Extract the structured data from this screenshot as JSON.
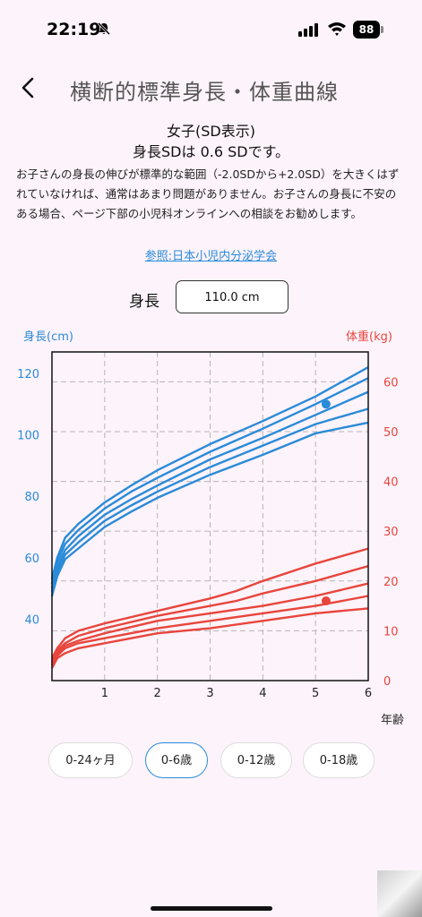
{
  "status": {
    "time": "22:19",
    "battery": "88"
  },
  "nav": {
    "title": "横断的標準身長・体重曲線"
  },
  "header": {
    "subtitle": "女子(SD表示)",
    "sd_text": "身長SDは 0.6 SDです。"
  },
  "description": "お子さんの身長の伸びが標準的な範囲（-2.0SDから+2.0SD）を大きくはずれていなければ、通常はあまり問題がありません。お子さんの身長に不安のある場合、ページ下部の小児科オンラインへの相談をお勧めします。",
  "reference_link": "参照:日本小児内分泌学会",
  "height_input": {
    "label": "身長",
    "value": "110.0 cm"
  },
  "age_tabs": [
    {
      "label": "0-24ヶ月",
      "active": false
    },
    {
      "label": "0-6歳",
      "active": true
    },
    {
      "label": "0-12歳",
      "active": false
    },
    {
      "label": "0-18歳",
      "active": false
    }
  ],
  "chart_data": {
    "type": "line",
    "y_left_title": "身長(cm)",
    "y_right_title": "体重(kg)",
    "x_axis_label": "年齢",
    "x_range": [
      0,
      6
    ],
    "x_ticks": [
      1,
      2,
      3,
      4,
      5,
      6
    ],
    "y_left_range": [
      20,
      127
    ],
    "y_left_ticks": [
      40,
      60,
      80,
      100,
      120
    ],
    "y_right_range": [
      0,
      66
    ],
    "y_right_ticks": [
      0,
      10,
      20,
      30,
      40,
      50,
      60
    ],
    "grid": true,
    "height_color": "#2a8bd8",
    "weight_color": "#e8453c",
    "height_series": [
      {
        "x": [
          0,
          0.1,
          0.25,
          0.5,
          1,
          1.5,
          2,
          3,
          4,
          5,
          6
        ],
        "values": [
          53.0,
          60.0,
          66.5,
          71.0,
          78.0,
          83.5,
          88.5,
          97.0,
          104.5,
          112.5,
          122.0
        ]
      },
      {
        "x": [
          0,
          0.1,
          0.25,
          0.5,
          1,
          1.5,
          2,
          3,
          4,
          5,
          6
        ],
        "values": [
          51.5,
          58.5,
          64.5,
          69.0,
          76.0,
          81.5,
          86.0,
          94.5,
          102.0,
          110.0,
          118.5
        ]
      },
      {
        "x": [
          0,
          0.1,
          0.25,
          0.5,
          1,
          1.5,
          2,
          3,
          4,
          5,
          6
        ],
        "values": [
          50.0,
          57.0,
          62.5,
          67.0,
          74.0,
          79.0,
          83.5,
          92.0,
          99.0,
          106.5,
          114.0
        ]
      },
      {
        "x": [
          0,
          0.1,
          0.25,
          0.5,
          1,
          1.5,
          2,
          3,
          4,
          5,
          6
        ],
        "values": [
          49.0,
          55.5,
          61.0,
          65.0,
          72.0,
          77.0,
          81.5,
          89.5,
          96.5,
          103.5,
          108.5
        ]
      },
      {
        "x": [
          0,
          0.1,
          0.25,
          0.5,
          1,
          1.5,
          2,
          3,
          4,
          5,
          6
        ],
        "values": [
          47.5,
          54.0,
          59.5,
          63.0,
          70.0,
          75.0,
          79.5,
          87.0,
          93.5,
          100.5,
          104.0
        ]
      }
    ],
    "weight_series": [
      {
        "x": [
          0,
          0.1,
          0.25,
          0.5,
          1,
          2,
          3,
          3.5,
          4,
          5,
          6
        ],
        "values": [
          4.5,
          6.5,
          8.5,
          10.0,
          11.5,
          14.0,
          16.5,
          18.0,
          20.0,
          23.5,
          26.5
        ]
      },
      {
        "x": [
          0,
          0.1,
          0.25,
          0.5,
          1,
          2,
          3,
          3.5,
          4,
          5,
          6
        ],
        "values": [
          4.0,
          6.0,
          7.5,
          9.0,
          10.5,
          13.0,
          15.0,
          16.0,
          17.5,
          20.0,
          23.0
        ]
      },
      {
        "x": [
          0,
          0.1,
          0.25,
          0.5,
          1,
          2,
          3,
          4,
          5,
          6
        ],
        "values": [
          3.5,
          5.5,
          7.0,
          8.0,
          9.5,
          12.0,
          13.5,
          15.0,
          17.0,
          19.5
        ]
      },
      {
        "x": [
          0,
          0.1,
          0.25,
          0.5,
          1,
          2,
          3,
          4,
          5,
          6
        ],
        "values": [
          3.0,
          5.0,
          6.5,
          7.5,
          8.5,
          10.5,
          12.0,
          13.5,
          15.0,
          17.0
        ]
      },
      {
        "x": [
          0,
          0.1,
          0.25,
          0.5,
          1,
          2,
          3,
          4,
          5,
          6
        ],
        "values": [
          2.5,
          4.5,
          5.5,
          6.5,
          7.5,
          9.5,
          10.5,
          12.0,
          13.5,
          14.5
        ]
      }
    ],
    "height_point": {
      "x": 5.2,
      "value": 110.0
    },
    "weight_point": {
      "x": 5.2,
      "value": 16.0
    }
  }
}
